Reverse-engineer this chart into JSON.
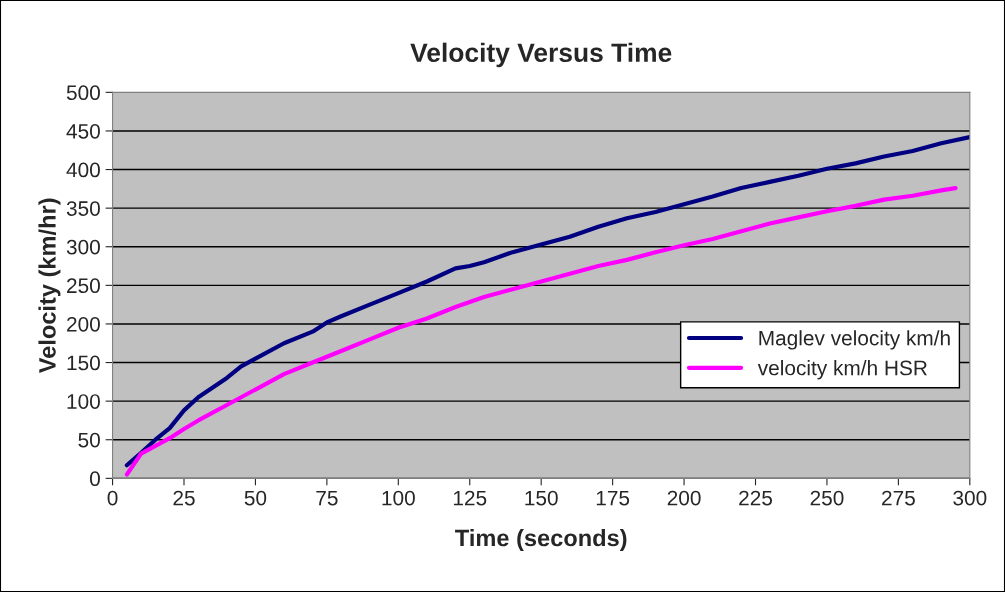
{
  "chart_data": {
    "type": "line",
    "title": "Velocity Versus Time",
    "xlabel": "Time (seconds)",
    "ylabel": "Velocity (km/hr)",
    "xlim": [
      0,
      300
    ],
    "xticks": [
      0,
      25,
      50,
      75,
      100,
      125,
      150,
      175,
      200,
      225,
      250,
      275,
      300
    ],
    "ylim": [
      0,
      500
    ],
    "yticks": [
      0,
      50,
      100,
      150,
      200,
      250,
      300,
      350,
      400,
      450,
      500
    ],
    "grid": "y",
    "legend": "right",
    "marker": "none",
    "line_style": "solid",
    "series": [
      {
        "name": "Maglev velocity km/h",
        "color": "#000080",
        "x": [
          5,
          10,
          15,
          20,
          25,
          30,
          40,
          45,
          50,
          60,
          70,
          75,
          80,
          90,
          100,
          110,
          120,
          125,
          130,
          140,
          150,
          160,
          170,
          180,
          190,
          200,
          210,
          220,
          230,
          240,
          250,
          260,
          270,
          280,
          290,
          300
        ],
        "values": [
          17,
          33,
          50,
          65,
          88,
          105,
          130,
          145,
          155,
          175,
          190,
          202,
          210,
          225,
          240,
          255,
          272,
          275,
          280,
          293,
          303,
          313,
          326,
          337,
          345,
          355,
          365,
          376,
          384,
          392,
          401,
          408,
          417,
          424,
          434,
          442
        ]
      },
      {
        "name": "velocity km/h HSR",
        "color": "#ff00ff",
        "x": [
          5,
          10,
          15,
          20,
          25,
          30,
          40,
          50,
          60,
          70,
          80,
          90,
          100,
          110,
          120,
          130,
          140,
          150,
          160,
          170,
          180,
          190,
          200,
          210,
          220,
          230,
          240,
          250,
          260,
          270,
          280,
          290,
          295
        ],
        "values": [
          5,
          32,
          42,
          52,
          64,
          75,
          95,
          115,
          135,
          150,
          165,
          180,
          195,
          207,
          222,
          235,
          245,
          255,
          265,
          275,
          283,
          293,
          302,
          310,
          320,
          330,
          338,
          346,
          353,
          361,
          366,
          373,
          376
        ]
      }
    ]
  }
}
